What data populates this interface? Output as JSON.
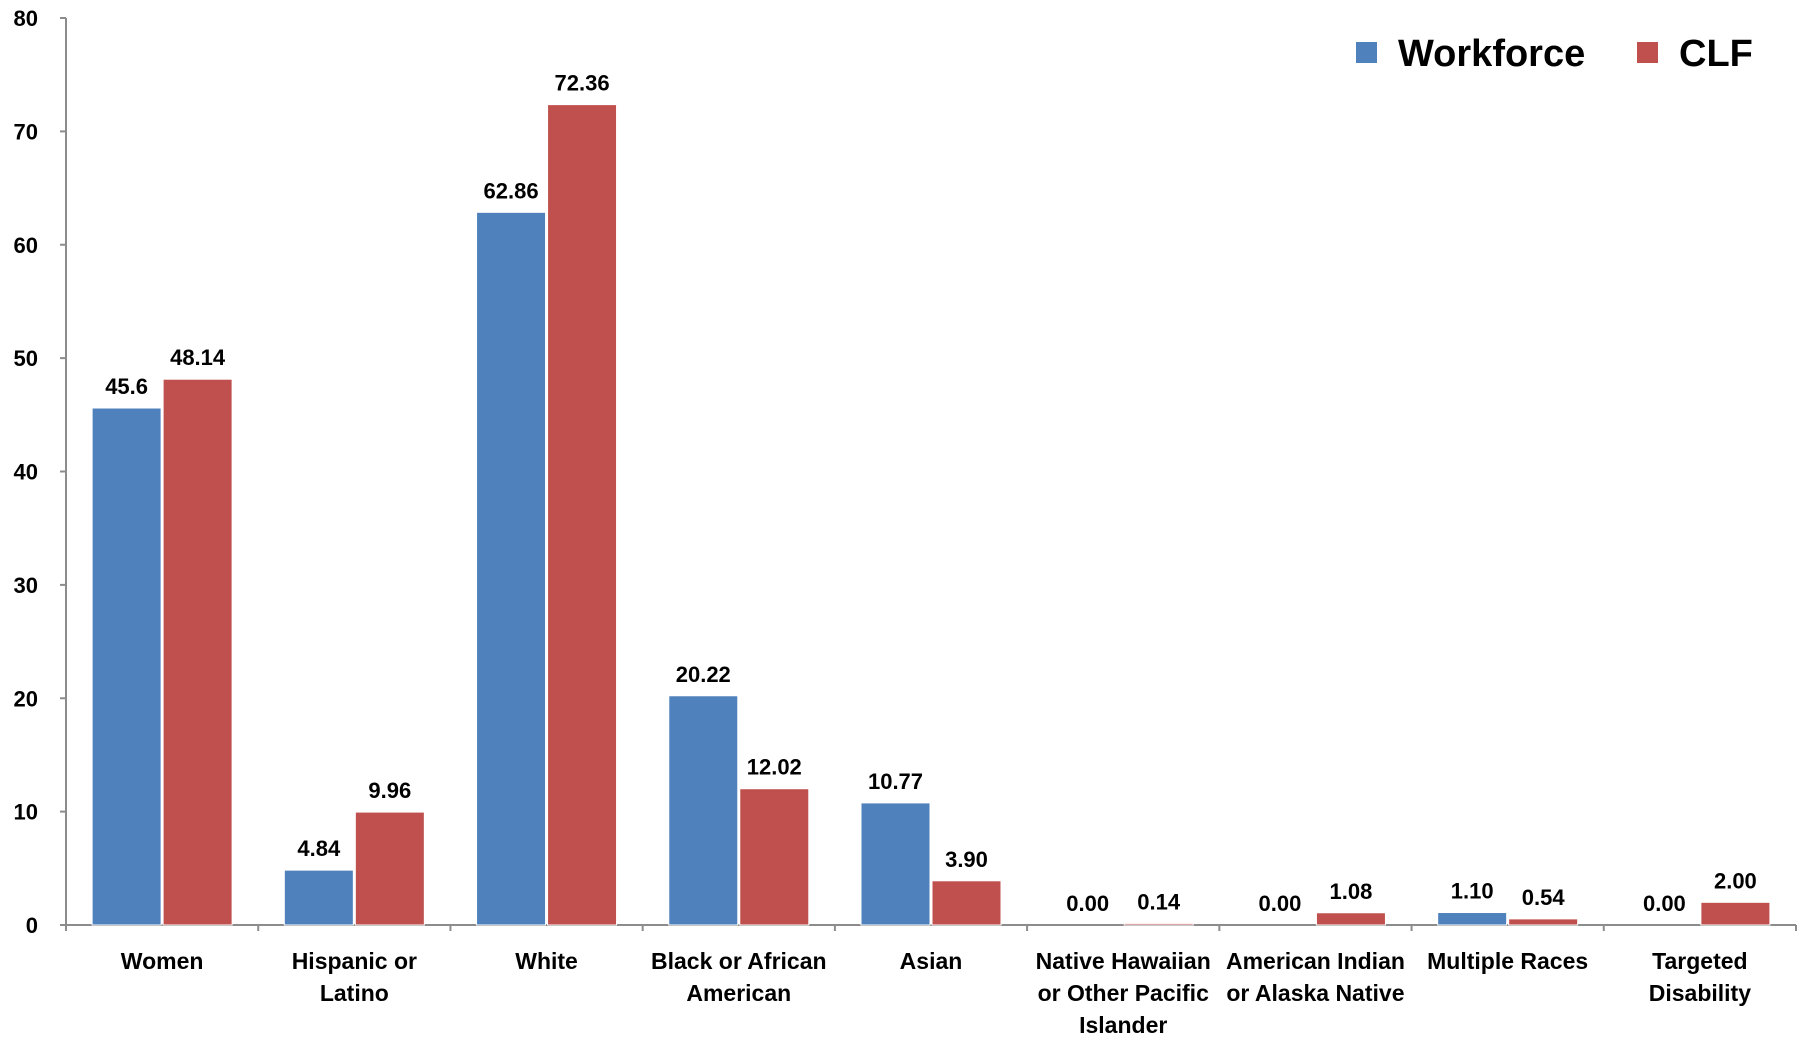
{
  "chart_data": {
    "type": "bar",
    "title": "",
    "xlabel": "",
    "ylabel": "",
    "ylim": [
      0,
      80
    ],
    "yticks": [
      0,
      10,
      20,
      30,
      40,
      50,
      60,
      70,
      80
    ],
    "grid": false,
    "legend_position": "top-right",
    "categories": [
      [
        "Women"
      ],
      [
        "Hispanic or",
        "Latino"
      ],
      [
        "White"
      ],
      [
        "Black or African",
        "American"
      ],
      [
        "Asian"
      ],
      [
        "Native Hawaiian",
        "or Other Pacific",
        "Islander"
      ],
      [
        "American Indian",
        "or Alaska Native"
      ],
      [
        "Multiple Races"
      ],
      [
        "Targeted",
        "Disability"
      ]
    ],
    "series": [
      {
        "name": "Workforce",
        "color": "#4F81BD",
        "values": [
          45.6,
          4.84,
          62.86,
          20.22,
          10.77,
          0.0,
          0.0,
          1.1,
          0.0
        ],
        "labels": [
          "45.6",
          "4.84",
          "62.86",
          "20.22",
          "10.77",
          "0.00",
          "0.00",
          "1.10",
          "0.00"
        ]
      },
      {
        "name": "CLF",
        "color": "#C0504D",
        "values": [
          48.14,
          9.96,
          72.36,
          12.02,
          3.9,
          0.14,
          1.08,
          0.54,
          2.0
        ],
        "labels": [
          "48.14",
          "9.96",
          "72.36",
          "12.02",
          "3.90",
          "0.14",
          "1.08",
          "0.54",
          "2.00"
        ]
      }
    ]
  }
}
